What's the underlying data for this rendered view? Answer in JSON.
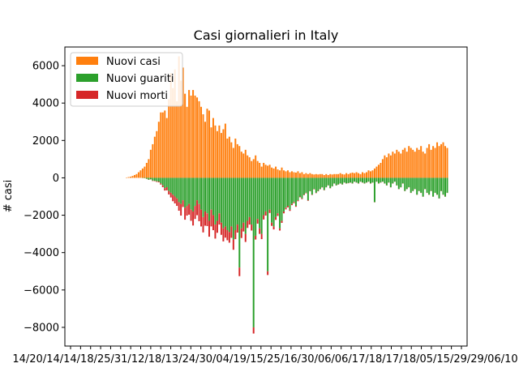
{
  "chart_data": {
    "type": "bar",
    "title": "Casi giornalieri in Italy",
    "xlabel": "",
    "ylabel": "# casi",
    "ylim": [
      -9000,
      7000
    ],
    "y_ticks": [
      -8000,
      -6000,
      -4000,
      -2000,
      0,
      2000,
      4000,
      6000
    ],
    "x_tick_labels": "14/20/14/14/18/25/31/12/18/13/24/30/04/19/15/25/16/30/06/06/17/18/17/18/05/15/29/29/06/10",
    "x_tick_count": 40,
    "grid": false,
    "legend": {
      "placement": "top-left",
      "entries": [
        {
          "label": "Nuovi casi",
          "color": "#ff7f0e"
        },
        {
          "label": "Nuovi guariti",
          "color": "#2ca02c"
        },
        {
          "label": "Nuovi morti",
          "color": "#d62728"
        }
      ]
    },
    "series": [
      {
        "name": "Nuovi casi",
        "color": "#ff7f0e",
        "direction": "up",
        "values": [
          20,
          40,
          60,
          100,
          150,
          200,
          300,
          400,
          500,
          600,
          800,
          1000,
          1500,
          1800,
          2200,
          2500,
          3000,
          3500,
          3500,
          3600,
          3200,
          4200,
          5600,
          4800,
          5800,
          4100,
          6500,
          5200,
          5900,
          4500,
          3800,
          4700,
          4400,
          4700,
          4400,
          4300,
          4100,
          3800,
          3400,
          3000,
          3700,
          3600,
          2700,
          3200,
          2800,
          2500,
          2800,
          2400,
          2600,
          2900,
          2100,
          2200,
          1900,
          1600,
          2100,
          1800,
          1700,
          1400,
          1300,
          1500,
          1200,
          1100,
          900,
          1000,
          1200,
          900,
          800,
          600,
          800,
          700,
          650,
          700,
          550,
          500,
          600,
          450,
          400,
          550,
          400,
          350,
          400,
          300,
          350,
          300,
          280,
          350,
          250,
          300,
          200,
          250,
          200,
          250,
          200,
          180,
          200,
          180,
          200,
          200,
          150,
          200,
          150,
          200,
          180,
          200,
          200,
          200,
          250,
          200,
          180,
          250,
          200,
          250,
          280,
          250,
          300,
          250,
          200,
          300,
          250,
          300,
          400,
          350,
          400,
          500,
          600,
          700,
          800,
          1000,
          1200,
          1100,
          1300,
          1200,
          1400,
          1300,
          1500,
          1400,
          1300,
          1500,
          1600,
          1400,
          1700,
          1600,
          1500,
          1400,
          1600,
          1500,
          1700,
          1400,
          1300,
          1600,
          1800,
          1500,
          1700,
          1600,
          1900,
          1700,
          1800,
          1900,
          1700,
          1600
        ]
      },
      {
        "name": "Nuovi guariti",
        "color": "#2ca02c",
        "direction": "down",
        "values": [
          0,
          0,
          0,
          0,
          0,
          0,
          0,
          0,
          10,
          20,
          50,
          100,
          80,
          150,
          160,
          190,
          200,
          300,
          400,
          550,
          500,
          700,
          800,
          900,
          1000,
          1100,
          1300,
          1400,
          1200,
          1600,
          1500,
          1400,
          1700,
          1800,
          1500,
          1200,
          1400,
          1700,
          2100,
          1800,
          1900,
          2300,
          1700,
          2000,
          2500,
          2300,
          1900,
          2400,
          2700,
          2600,
          2800,
          2900,
          2600,
          3300,
          2800,
          2500,
          4800,
          2700,
          2400,
          3000,
          2300,
          2100,
          2500,
          8000,
          3100,
          2200,
          2700,
          3000,
          2000,
          1800,
          5000,
          1700,
          2400,
          2600,
          2100,
          1900,
          2700,
          2300,
          1800,
          1600,
          1500,
          1700,
          1400,
          1300,
          1500,
          1200,
          1000,
          1100,
          900,
          800,
          1200,
          700,
          900,
          600,
          800,
          700,
          600,
          500,
          650,
          500,
          400,
          550,
          450,
          300,
          400,
          350,
          300,
          350,
          250,
          300,
          280,
          250,
          300,
          200,
          250,
          300,
          200,
          250,
          300,
          250,
          200,
          300,
          250,
          1300,
          200,
          300,
          250,
          200,
          300,
          400,
          250,
          500,
          300,
          200,
          400,
          600,
          500,
          300,
          700,
          600,
          500,
          800,
          700,
          600,
          900,
          700,
          800,
          1000,
          600,
          800,
          900,
          700,
          1000,
          800,
          900,
          1100,
          700,
          900,
          1000,
          800,
          900,
          1000,
          800,
          900
        ]
      },
      {
        "name": "Nuovi morti",
        "color": "#d62728",
        "direction": "down",
        "values": [
          0,
          0,
          0,
          0,
          0,
          0,
          0,
          0,
          0,
          0,
          5,
          10,
          10,
          20,
          20,
          30,
          40,
          60,
          100,
          130,
          170,
          190,
          250,
          350,
          370,
          400,
          460,
          620,
          360,
          640,
          520,
          570,
          600,
          750,
          700,
          800,
          920,
          900,
          820,
          760,
          680,
          850,
          900,
          800,
          750,
          640,
          600,
          650,
          700,
          600,
          540,
          570,
          610,
          550,
          480,
          430,
          460,
          520,
          470,
          430,
          380,
          400,
          320,
          330,
          200,
          250,
          300,
          280,
          230,
          220,
          200,
          180,
          170,
          160,
          150,
          140,
          120,
          110,
          100,
          90,
          80,
          70,
          60,
          60,
          50,
          50,
          40,
          40,
          30,
          30,
          30,
          20,
          20,
          20,
          20,
          20,
          15,
          15,
          15,
          10,
          10,
          10,
          10,
          10,
          10,
          10,
          10,
          10,
          10,
          10,
          10,
          10,
          10,
          10,
          10,
          10,
          10,
          10,
          10,
          10,
          10,
          10,
          10,
          10,
          10,
          10,
          10,
          10,
          10,
          10,
          10,
          10,
          10,
          10,
          10,
          10,
          10,
          10,
          10,
          10,
          10,
          10,
          10,
          10,
          10,
          10,
          10,
          10,
          10,
          10,
          10,
          10,
          10,
          10,
          10,
          10,
          10,
          10,
          10,
          10,
          10,
          10,
          10,
          10,
          10,
          10,
          10
        ]
      }
    ]
  }
}
